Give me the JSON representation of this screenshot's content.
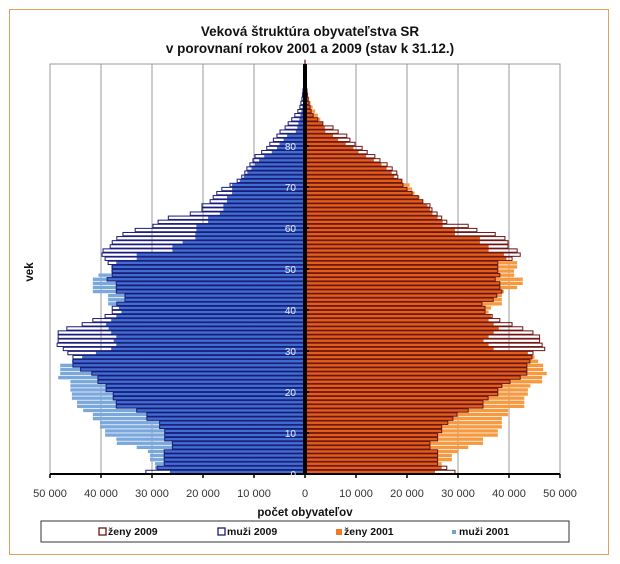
{
  "chart_data": {
    "type": "bar",
    "subtype": "population-pyramid",
    "title": [
      "Veková štruktúra obyvateľstva SR",
      "v porovnaní rokov 2001 a 2009 (stav k 31.12.)"
    ],
    "xlabel": "počet obyvateľov",
    "ylabel": "vek",
    "xlim": [
      -50000,
      50000
    ],
    "x_ticks": [
      -50000,
      -40000,
      -30000,
      -20000,
      -10000,
      0,
      10000,
      20000,
      30000,
      40000,
      50000
    ],
    "x_tick_labels": [
      "50 000",
      "40 000",
      "30 000",
      "20 000",
      "10 000",
      "0",
      "10 000",
      "20 000",
      "30 000",
      "40 000",
      "50 000"
    ],
    "y_ticks": [
      0,
      10,
      20,
      30,
      40,
      50,
      60,
      70,
      80
    ],
    "ylim": [
      0,
      100
    ],
    "grid": "vertical",
    "legend_position": "bottom",
    "colors": {
      "muzi2009_outline": "#1a1a7a",
      "muzi_overlap": "#3f6fcf",
      "muzi2001_excess": "#7aa8dc",
      "zeny2009_outline": "#6e1414",
      "zeny_overlap": "#e0601a",
      "zeny2001_excess": "#f59a40"
    },
    "legend": [
      "ženy 2009",
      "muži 2009",
      "ženy 2001",
      "muži 2001"
    ],
    "ages": "0-100",
    "series": [
      {
        "name": "muži 2009",
        "side": "left",
        "values_thousands": [
          31.2,
          29,
          27.6,
          27.6,
          27.6,
          27.6,
          26,
          26,
          27.5,
          27.5,
          27.5,
          28.5,
          28.5,
          31,
          31,
          33,
          37,
          37,
          37.6,
          37.6,
          39,
          39,
          40.6,
          40.6,
          41.8,
          44,
          45.5,
          45.5,
          45.5,
          46.5,
          47.4,
          48.6,
          48.4,
          48.4,
          48.4,
          46.7,
          43.7,
          41.6,
          39.2,
          37.8,
          37.8,
          36.9,
          35.3,
          35.3,
          37,
          37,
          37,
          38.8,
          37.8,
          37.8,
          37.8,
          38.6,
          39.2,
          39.8,
          39.6,
          38.2,
          37.8,
          36.9,
          35.7,
          33.3,
          29.8,
          28.8,
          26.8,
          22.5,
          20.2,
          20.2,
          18.6,
          18,
          17.3,
          16.3,
          14.7,
          13.3,
          12.4,
          11.8,
          11.4,
          10.8,
          10.2,
          9.8,
          8.5,
          7.5,
          6.9,
          6.2,
          5.5,
          4.9,
          3.9,
          3.3,
          2.6,
          2,
          1.4,
          1,
          0.8,
          0.6,
          0.5,
          0.4,
          0.3,
          0.2,
          0.15,
          0.1,
          0.05,
          0.03,
          0.02
        ]
      },
      {
        "name": "muži 2001",
        "side": "left",
        "values_thousands": [
          26.5,
          29.4,
          29.4,
          30.4,
          30.4,
          30.8,
          33,
          36.9,
          37,
          39.2,
          39.2,
          40.2,
          40.2,
          41.6,
          41.6,
          43.5,
          44.7,
          44.7,
          45.7,
          45.7,
          46,
          46,
          46,
          48.4,
          48,
          48,
          48,
          45.7,
          43.7,
          41,
          38,
          37,
          37.5,
          37,
          38,
          38.5,
          39,
          38,
          37,
          36,
          36.5,
          38.6,
          38.6,
          38.6,
          41.6,
          41.6,
          41.6,
          41.6,
          40.5,
          38,
          38,
          37,
          33,
          33,
          26,
          26,
          24,
          21.5,
          21.5,
          21.3,
          21.3,
          19,
          19,
          16.7,
          16,
          16,
          15.3,
          15.3,
          14.3,
          14.3,
          14.3,
          12.8,
          12,
          11.3,
          10.5,
          9.8,
          9,
          8,
          6.5,
          5.5,
          5,
          4.2,
          3.5,
          1.8,
          1.5,
          1.3,
          1.1,
          0.9,
          0.7,
          0.5,
          0.4,
          0.3,
          0.2,
          0.15,
          0.1,
          0.08,
          0.05,
          0.03,
          0.02,
          0.01,
          0.01
        ]
      },
      {
        "name": "ženy 2009",
        "side": "right",
        "values_thousands": [
          29.4,
          27.8,
          26,
          26,
          26,
          26,
          24.5,
          24.5,
          26,
          26,
          26.8,
          26.8,
          28,
          29,
          29.8,
          32,
          34.9,
          34.9,
          35.9,
          37.8,
          37.8,
          38.6,
          40.2,
          42.2,
          43.5,
          43.5,
          43.5,
          44.1,
          44.5,
          44.7,
          47,
          46.5,
          46,
          46,
          44.7,
          42.7,
          40.6,
          38.2,
          36.7,
          35.3,
          35.3,
          34.7,
          36.9,
          37.6,
          38.6,
          38.2,
          38.2,
          37.3,
          38.2,
          37.8,
          37.8,
          37.8,
          40.6,
          42.2,
          41.6,
          39.8,
          39.8,
          39.2,
          37.3,
          33.7,
          32,
          27.8,
          26.8,
          25.9,
          24.9,
          24.5,
          23.1,
          22.2,
          21,
          20,
          19.2,
          19,
          18.2,
          18,
          17.1,
          16.1,
          14.7,
          13.7,
          12.2,
          11.2,
          9.8,
          8.8,
          8.2,
          6.5,
          5.5,
          3.5,
          2.5,
          1.6,
          1.2,
          1,
          0.8,
          0.6,
          0.5,
          0.4,
          0.3,
          0.2,
          0.15,
          0.1,
          0.06,
          0.04,
          0.03
        ]
      },
      {
        "name": "ženy 2001",
        "side": "right",
        "values_thousands": [
          25.5,
          26.8,
          26.8,
          28.8,
          28.8,
          30,
          32,
          34.9,
          34.9,
          37.8,
          37.8,
          38.6,
          38.6,
          38.6,
          39.8,
          39.8,
          43,
          43,
          43,
          43.7,
          43.7,
          44.2,
          46.5,
          46.5,
          47.4,
          46.7,
          46.7,
          45.7,
          45,
          43.7,
          37,
          36,
          35,
          36,
          37,
          38,
          37,
          36,
          36.5,
          36,
          36.5,
          38.6,
          38.6,
          38.6,
          39,
          41.6,
          42.7,
          42.7,
          41,
          41,
          41.6,
          41.6,
          39.5,
          39,
          36,
          36,
          34.3,
          34.3,
          29.4,
          29.4,
          27,
          27,
          26,
          25,
          24.5,
          24,
          23.2,
          22.5,
          21.5,
          21,
          20.5,
          19,
          17.5,
          17,
          16,
          15,
          13.5,
          12,
          10.5,
          9.5,
          8,
          6.5,
          5.5,
          4,
          3.9,
          3.5,
          3,
          2.5,
          2,
          1.5,
          1.1,
          0.8,
          0.6,
          0.4,
          0.3,
          0.2,
          0.15,
          0.1,
          0.06,
          0.04,
          0.03
        ]
      }
    ]
  }
}
